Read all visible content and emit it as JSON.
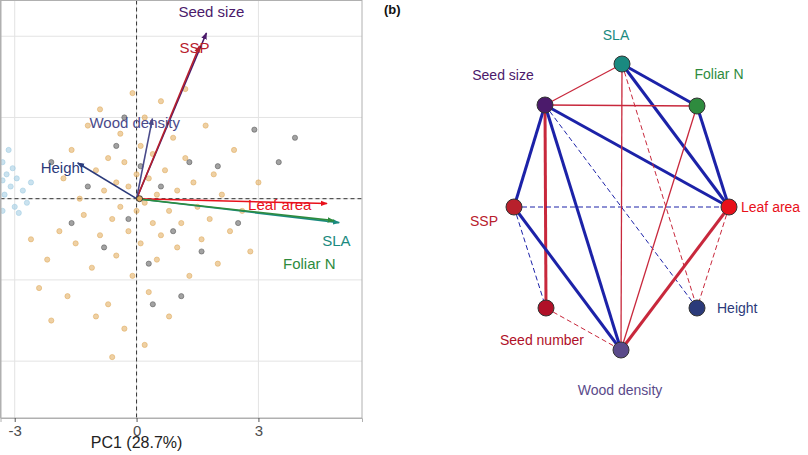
{
  "chart_data": {
    "type": "scatter",
    "x_label": "PC1 (28.7%)",
    "xlim": [
      -3.35,
      5.55
    ],
    "ylim": [
      -5.4,
      4.88
    ],
    "xticks": [
      -3,
      0,
      3
    ],
    "yticks": [
      -4,
      -2,
      0,
      2,
      4
    ],
    "tick_labels": "x",
    "grid": true,
    "hlines": [
      0
    ],
    "vlines": [
      0
    ],
    "series": [
      {
        "color": "#9ecae1",
        "x": [
          -3.3,
          -3.2,
          -3.1,
          -3.25,
          -2.95,
          -3.0,
          -3.3,
          -2.8,
          -3.15,
          -2.7,
          -3.05,
          -2.6,
          -3.3,
          -2.9
        ],
        "values": [
          0.9,
          0.6,
          0.3,
          0.1,
          0.5,
          -0.2,
          -0.3,
          0.2,
          1.2,
          -0.1,
          0.75,
          0.4,
          0.45,
          -0.35
        ]
      },
      {
        "color": "#e0a95a",
        "x": [
          -2.4,
          -2.2,
          -2.1,
          -1.9,
          -1.8,
          -1.7,
          -1.6,
          -1.5,
          -1.4,
          -1.3,
          -1.2,
          -1.1,
          -1.0,
          -0.9,
          -0.9,
          -0.8,
          -0.7,
          -0.7,
          -0.6,
          -0.5,
          -0.5,
          -0.4,
          -0.4,
          -0.3,
          -0.3,
          -0.2,
          -0.2,
          -0.1,
          -0.1,
          0.0,
          0.0,
          0.1,
          0.1,
          0.2,
          0.2,
          0.3,
          0.3,
          0.4,
          0.4,
          0.5,
          0.5,
          0.6,
          0.6,
          0.7,
          0.8,
          0.8,
          0.9,
          1.0,
          1.0,
          1.1,
          1.2,
          1.3,
          1.4,
          1.5,
          1.6,
          1.7,
          1.8,
          1.9,
          2.0,
          2.1,
          2.3,
          2.4,
          2.6,
          2.8,
          3.0,
          -1.0,
          -2.6,
          -0.6,
          0.2,
          1.2
        ],
        "values": [
          -2.2,
          -1.5,
          -3.0,
          -0.8,
          0.5,
          -2.4,
          1.2,
          -1.1,
          0.0,
          -0.4,
          1.8,
          -1.7,
          0.7,
          -0.9,
          2.2,
          0.2,
          -2.6,
          1.0,
          -0.5,
          0.4,
          -1.4,
          1.6,
          -0.2,
          0.9,
          -3.2,
          -0.8,
          0.3,
          2.6,
          -1.9,
          0.6,
          -0.3,
          1.3,
          -1.1,
          -0.1,
          2.0,
          -2.3,
          0.5,
          -0.6,
          1.1,
          -1.5,
          0.1,
          2.4,
          -0.9,
          0.7,
          -0.3,
          -2.9,
          1.5,
          -1.2,
          0.2,
          -0.6,
          1.0,
          -1.9,
          0.4,
          -0.2,
          -1.0,
          1.8,
          -0.5,
          0.6,
          -1.6,
          0.1,
          -0.8,
          1.2,
          -0.3,
          -1.3,
          0.4,
          -2.9,
          -1.0,
          -3.9,
          -3.6,
          2.7
        ]
      },
      {
        "color": "#555555",
        "x": [
          -1.2,
          -0.8,
          -0.5,
          -0.2,
          0.1,
          0.3,
          0.6,
          0.9,
          1.3,
          1.6,
          2.0,
          2.5,
          3.5,
          3.9,
          0.4,
          -1.6,
          -0.3,
          1.1,
          2.9,
          -2.1
        ],
        "values": [
          0.3,
          -1.2,
          1.3,
          -0.5,
          0.8,
          -1.6,
          0.3,
          -0.8,
          0.9,
          -1.3,
          0.8,
          -0.6,
          0.9,
          1.5,
          -2.6,
          -0.6,
          2.0,
          -2.4,
          1.7,
          0.9
        ]
      }
    ],
    "loadings": [
      {
        "label": "Seed size",
        "color": "#4b1a6b",
        "x": 1.72,
        "y": 4.08
      },
      {
        "label": "SSP",
        "color": "#b8202c",
        "x": 1.55,
        "y": 3.76
      },
      {
        "label": "Wood density",
        "color": "#4a4a8a",
        "x": 0.39,
        "y": 1.97
      },
      {
        "label": "Height",
        "color": "#2b3a7a",
        "x": -1.45,
        "y": 0.88
      },
      {
        "label": "Leaf area",
        "color": "#e8101a",
        "x": 4.69,
        "y": -0.12
      },
      {
        "label": "SLA",
        "color": "#1a8a80",
        "x": 4.99,
        "y": -0.59
      },
      {
        "label": "Foliar N",
        "color": "#2e8b3e",
        "x": 4.86,
        "y": -0.54
      }
    ]
  },
  "diagram": {
    "panel_label": "(b)",
    "nodes": [
      {
        "label": "SLA",
        "color": "#1a8a80"
      },
      {
        "label": "Foliar N",
        "color": "#2e8b3e"
      },
      {
        "label": "Leaf area",
        "color": "#e8101a"
      },
      {
        "label": "Height",
        "color": "#2b3a7a"
      },
      {
        "label": "Wood density",
        "color": "#5a4a8a"
      },
      {
        "label": "Seed number",
        "color": "#b01028"
      },
      {
        "label": "SSP",
        "color": "#b8202c"
      },
      {
        "label": "Seed size",
        "color": "#4b1a6b"
      }
    ],
    "edges": [
      {
        "source": 0,
        "target": 1,
        "color": "#1c22a8",
        "line_style": "solid",
        "strong": true
      },
      {
        "source": 0,
        "target": 2,
        "color": "#1c22a8",
        "line_style": "solid",
        "strong": true
      },
      {
        "source": 1,
        "target": 2,
        "color": "#1c22a8",
        "line_style": "solid",
        "strong": true
      },
      {
        "source": 7,
        "target": 0,
        "color": "#c8283c",
        "line_style": "solid",
        "strong": false
      },
      {
        "source": 7,
        "target": 1,
        "color": "#c8283c",
        "line_style": "solid",
        "strong": false
      },
      {
        "source": 7,
        "target": 2,
        "color": "#1c22a8",
        "line_style": "solid",
        "strong": true
      },
      {
        "source": 7,
        "target": 6,
        "color": "#1c22a8",
        "line_style": "solid",
        "strong": true
      },
      {
        "source": 7,
        "target": 5,
        "color": "#c8283c",
        "line_style": "solid",
        "strong": true
      },
      {
        "source": 7,
        "target": 4,
        "color": "#1c22a8",
        "line_style": "solid",
        "strong": true
      },
      {
        "source": 7,
        "target": 3,
        "color": "#1c22a8",
        "line_style": "dashed",
        "strong": false
      },
      {
        "source": 6,
        "target": 2,
        "color": "#1c22a8",
        "line_style": "dashed",
        "strong": false
      },
      {
        "source": 6,
        "target": 4,
        "color": "#1c22a8",
        "line_style": "solid",
        "strong": true
      },
      {
        "source": 6,
        "target": 5,
        "color": "#1c22a8",
        "line_style": "dashed",
        "strong": false
      },
      {
        "source": 5,
        "target": 4,
        "color": "#c8283c",
        "line_style": "dashed",
        "strong": false
      },
      {
        "source": 4,
        "target": 0,
        "color": "#c8283c",
        "line_style": "solid",
        "strong": false
      },
      {
        "source": 4,
        "target": 1,
        "color": "#c8283c",
        "line_style": "solid",
        "strong": false
      },
      {
        "source": 4,
        "target": 2,
        "color": "#c8283c",
        "line_style": "solid",
        "strong": true
      },
      {
        "source": 2,
        "target": 3,
        "color": "#c8283c",
        "line_style": "dashed",
        "strong": false
      },
      {
        "source": 0,
        "target": 3,
        "color": "#c8283c",
        "line_style": "dashed",
        "strong": false
      }
    ]
  }
}
